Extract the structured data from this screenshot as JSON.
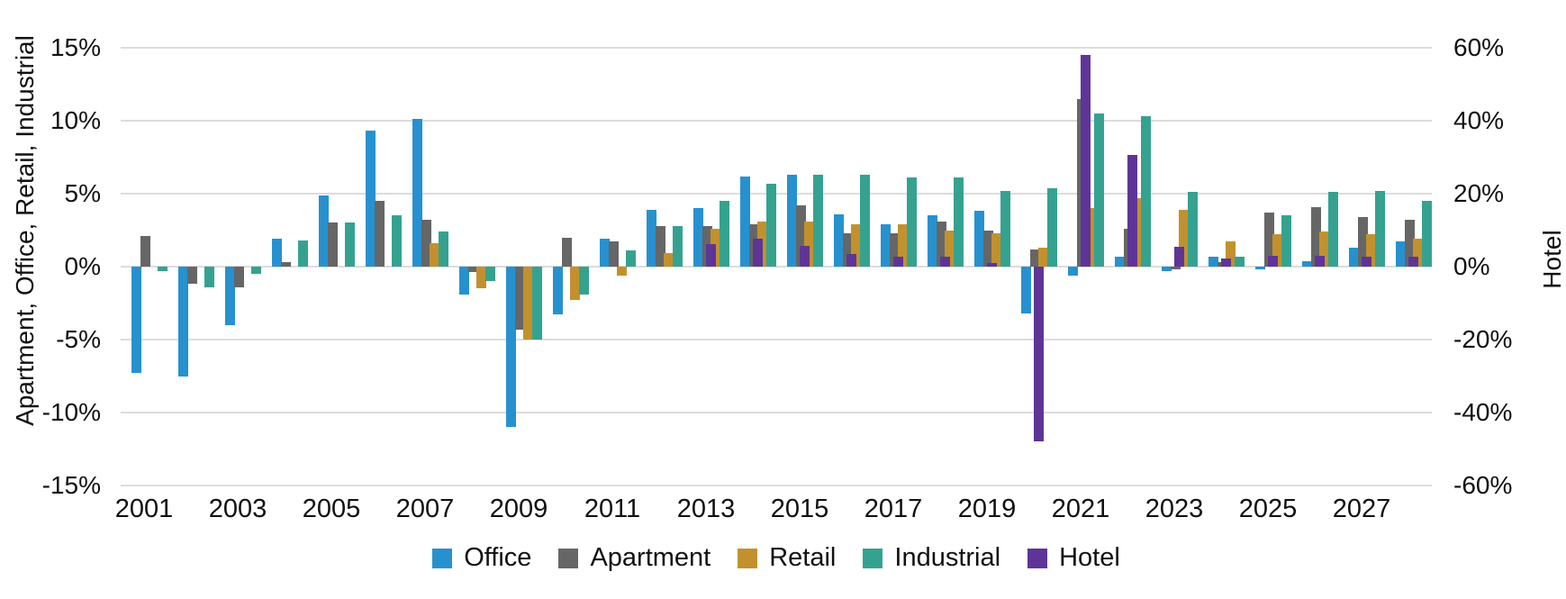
{
  "chart_data": {
    "type": "bar",
    "title": "",
    "categories": [
      "2001",
      "2002",
      "2003",
      "2004",
      "2005",
      "2006",
      "2007",
      "2008",
      "2009",
      "2010",
      "2011",
      "2012",
      "2013",
      "2014",
      "2015",
      "2016",
      "2017",
      "2018",
      "2019",
      "2020",
      "2021",
      "2022",
      "2023",
      "2024",
      "2025",
      "2026",
      "2027",
      "2028"
    ],
    "x_tick_labels": [
      "2001",
      "2003",
      "2005",
      "2007",
      "2009",
      "2011",
      "2013",
      "2015",
      "2017",
      "2019",
      "2021",
      "2023",
      "2025",
      "2027"
    ],
    "left_axis": {
      "label": "Apartment, Office, Retail, Industrial",
      "ticks": [
        "15%",
        "10%",
        "5%",
        "0%",
        "-5%",
        "-10%",
        "-15%"
      ],
      "min": -15,
      "max": 15,
      "step": 5
    },
    "right_axis": {
      "label": "Hotel",
      "ticks": [
        "60%",
        "40%",
        "20%",
        "0%",
        "-20%",
        "-40%",
        "-60%"
      ],
      "min": -60,
      "max": 60,
      "step": 20
    },
    "grid": true,
    "legend_position": "bottom",
    "legend": [
      "Office",
      "Apartment",
      "Retail",
      "Industrial",
      "Hotel"
    ],
    "series": [
      {
        "name": "Office",
        "color": "#2791CF",
        "axis": "left",
        "values": [
          -7.3,
          -7.5,
          -4.0,
          1.9,
          4.9,
          9.3,
          10.1,
          -1.9,
          -11.0,
          -3.3,
          1.9,
          3.9,
          4.0,
          6.2,
          6.3,
          3.6,
          2.9,
          3.5,
          3.8,
          -3.2,
          -0.6,
          0.7,
          -0.3,
          0.7,
          -0.2,
          0.4,
          1.3,
          1.7
        ]
      },
      {
        "name": "Apartment",
        "color": "#666666",
        "axis": "left",
        "values": [
          2.1,
          -1.2,
          -1.4,
          0.3,
          3.0,
          4.5,
          3.2,
          -0.4,
          -4.3,
          2.0,
          1.7,
          2.8,
          2.8,
          2.9,
          4.2,
          2.3,
          2.3,
          3.1,
          2.5,
          1.2,
          11.5,
          2.6,
          -0.2,
          0.3,
          3.7,
          4.1,
          3.4,
          3.2
        ]
      },
      {
        "name": "Retail",
        "color": "#C2912E",
        "axis": "left",
        "values": [
          null,
          null,
          null,
          null,
          null,
          null,
          1.6,
          -1.5,
          -5.0,
          -2.3,
          -0.6,
          0.9,
          2.6,
          3.1,
          3.1,
          2.9,
          2.9,
          2.5,
          2.3,
          1.3,
          4.0,
          4.7,
          3.9,
          1.7,
          2.2,
          2.4,
          2.2,
          1.9
        ]
      },
      {
        "name": "Industrial",
        "color": "#35A290",
        "axis": "left",
        "values": [
          -0.3,
          -1.4,
          -0.5,
          1.8,
          3.0,
          3.5,
          2.4,
          -1.0,
          -5.0,
          -1.9,
          1.1,
          2.8,
          4.5,
          5.7,
          6.3,
          6.3,
          6.1,
          6.1,
          5.2,
          5.4,
          10.5,
          10.3,
          5.1,
          0.7,
          3.5,
          5.1,
          5.2,
          4.5
        ]
      },
      {
        "name": "Hotel",
        "color": "#5E3597",
        "axis": "right",
        "values": [
          null,
          null,
          null,
          null,
          null,
          null,
          null,
          null,
          null,
          null,
          null,
          null,
          6.2,
          7.6,
          5.8,
          3.4,
          2.6,
          2.7,
          1.0,
          -48.0,
          58.0,
          30.7,
          5.4,
          2.2,
          3.0,
          3.0,
          2.6,
          2.7
        ]
      }
    ]
  }
}
